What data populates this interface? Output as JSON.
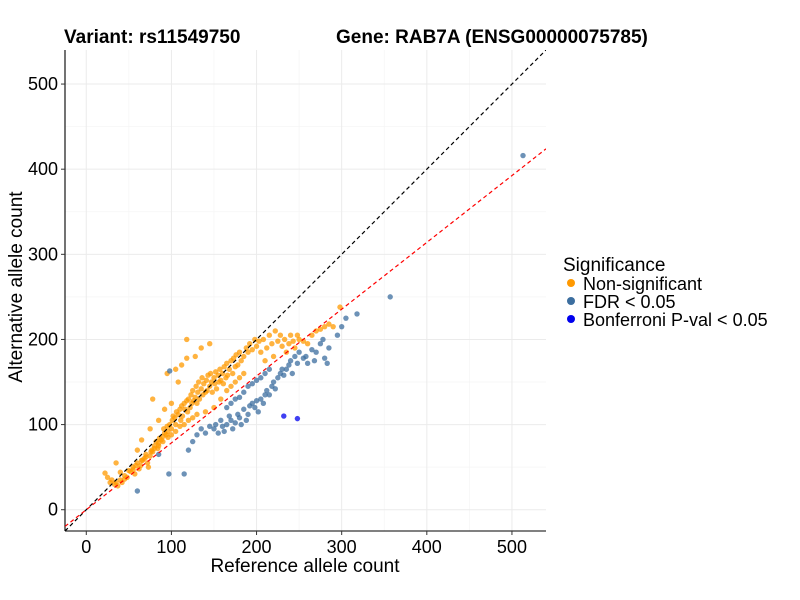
{
  "title_left": "Variant: rs11549750",
  "title_right": "Gene: RAB7A (ENSG00000075785)",
  "chart_data": {
    "type": "scatter",
    "xlabel": "Reference allele count",
    "ylabel": "Alternative allele count",
    "xlim": [
      -25,
      540
    ],
    "ylim": [
      -25,
      540
    ],
    "xticks": [
      0,
      100,
      200,
      300,
      400,
      500
    ],
    "yticks": [
      0,
      100,
      200,
      300,
      400,
      500
    ],
    "x_tick_labels": [
      "0",
      "100",
      "200",
      "300",
      "400",
      "500"
    ],
    "y_tick_labels": [
      "0",
      "100",
      "200",
      "300",
      "400",
      "500"
    ],
    "grid": true,
    "legend": {
      "title": "Significance",
      "position": "right",
      "entries": [
        {
          "label": "Non-significant",
          "color": "#FF9900"
        },
        {
          "label": "FDR < 0.05",
          "color": "#3C6E9F"
        },
        {
          "label": "Bonferroni P-val < 0.05",
          "color": "#0000EE"
        }
      ]
    },
    "reference_lines": [
      {
        "name": "identity",
        "slope": 1.0,
        "intercept": 0,
        "color": "#000000",
        "style": "dashed"
      },
      {
        "name": "fit",
        "slope": 0.785,
        "intercept": 0,
        "color": "#FF0000",
        "style": "dashed"
      }
    ],
    "series": [
      {
        "name": "Non-significant",
        "color": "#FF9900",
        "points": [
          [
            22,
            43
          ],
          [
            25,
            38
          ],
          [
            30,
            35
          ],
          [
            33,
            30
          ],
          [
            35,
            55
          ],
          [
            37,
            28
          ],
          [
            40,
            44
          ],
          [
            42,
            32
          ],
          [
            45,
            40
          ],
          [
            48,
            38
          ],
          [
            50,
            46
          ],
          [
            52,
            45
          ],
          [
            55,
            50
          ],
          [
            57,
            42
          ],
          [
            60,
            55
          ],
          [
            62,
            48
          ],
          [
            64,
            52
          ],
          [
            66,
            58
          ],
          [
            68,
            60
          ],
          [
            70,
            65
          ],
          [
            72,
            55
          ],
          [
            73,
            50
          ],
          [
            75,
            63
          ],
          [
            77,
            70
          ],
          [
            78,
            68
          ],
          [
            80,
            75
          ],
          [
            82,
            80
          ],
          [
            84,
            72
          ],
          [
            85,
            78
          ],
          [
            86,
            84
          ],
          [
            88,
            82
          ],
          [
            90,
            86
          ],
          [
            91,
            95
          ],
          [
            92,
            90
          ],
          [
            94,
            88
          ],
          [
            95,
            98
          ],
          [
            96,
            92
          ],
          [
            98,
            100
          ],
          [
            100,
            95
          ],
          [
            101,
            105
          ],
          [
            102,
            110
          ],
          [
            104,
            108
          ],
          [
            105,
            100
          ],
          [
            106,
            115
          ],
          [
            108,
            112
          ],
          [
            110,
            118
          ],
          [
            111,
            105
          ],
          [
            112,
            122
          ],
          [
            113,
            110
          ],
          [
            115,
            125
          ],
          [
            116,
            118
          ],
          [
            118,
            128
          ],
          [
            119,
            115
          ],
          [
            120,
            130
          ],
          [
            122,
            120
          ],
          [
            123,
            135
          ],
          [
            124,
            125
          ],
          [
            125,
            140
          ],
          [
            126,
            128
          ],
          [
            128,
            132
          ],
          [
            129,
            145
          ],
          [
            130,
            125
          ],
          [
            131,
            138
          ],
          [
            132,
            150
          ],
          [
            133,
            130
          ],
          [
            135,
            142
          ],
          [
            136,
            155
          ],
          [
            137,
            135
          ],
          [
            138,
            148
          ],
          [
            140,
            138
          ],
          [
            141,
            152
          ],
          [
            142,
            140
          ],
          [
            143,
            158
          ],
          [
            145,
            145
          ],
          [
            146,
            160
          ],
          [
            147,
            150
          ],
          [
            148,
            138
          ],
          [
            150,
            155
          ],
          [
            151,
            148
          ],
          [
            152,
            162
          ],
          [
            153,
            142
          ],
          [
            155,
            158
          ],
          [
            156,
            150
          ],
          [
            157,
            165
          ],
          [
            158,
            152
          ],
          [
            160,
            160
          ],
          [
            161,
            148
          ],
          [
            162,
            168
          ],
          [
            164,
            155
          ],
          [
            165,
            172
          ],
          [
            166,
            158
          ],
          [
            168,
            165
          ],
          [
            170,
            175
          ],
          [
            172,
            160
          ],
          [
            173,
            178
          ],
          [
            175,
            168
          ],
          [
            176,
            182
          ],
          [
            178,
            170
          ],
          [
            180,
            185
          ],
          [
            182,
            175
          ],
          [
            185,
            180
          ],
          [
            188,
            190
          ],
          [
            190,
            185
          ],
          [
            192,
            195
          ],
          [
            195,
            188
          ],
          [
            198,
            200
          ],
          [
            200,
            192
          ],
          [
            203,
            198
          ],
          [
            205,
            185
          ],
          [
            208,
            200
          ],
          [
            210,
            175
          ],
          [
            212,
            190
          ],
          [
            215,
            205
          ],
          [
            218,
            195
          ],
          [
            220,
            180
          ],
          [
            222,
            210
          ],
          [
            225,
            198
          ],
          [
            228,
            205
          ],
          [
            230,
            192
          ],
          [
            233,
            200
          ],
          [
            235,
            185
          ],
          [
            238,
            195
          ],
          [
            240,
            205
          ],
          [
            243,
            198
          ],
          [
            245,
            190
          ],
          [
            248,
            205
          ],
          [
            250,
            200
          ],
          [
            255,
            198
          ],
          [
            260,
            195
          ],
          [
            265,
            205
          ],
          [
            270,
            210
          ],
          [
            275,
            212
          ],
          [
            280,
            215
          ],
          [
            285,
            218
          ],
          [
            290,
            215
          ],
          [
            298,
            238
          ],
          [
            118,
            200
          ],
          [
            60,
            70
          ],
          [
            78,
            130
          ],
          [
            95,
            160
          ],
          [
            105,
            165
          ],
          [
            112,
            170
          ],
          [
            118,
            178
          ],
          [
            128,
            180
          ],
          [
            135,
            190
          ],
          [
            145,
            195
          ],
          [
            108,
            150
          ],
          [
            100,
            125
          ],
          [
            92,
            118
          ],
          [
            85,
            105
          ],
          [
            75,
            95
          ],
          [
            65,
            82
          ],
          [
            140,
            115
          ],
          [
            150,
            120
          ],
          [
            158,
            130
          ],
          [
            165,
            140
          ],
          [
            170,
            145
          ],
          [
            175,
            150
          ],
          [
            180,
            155
          ],
          [
            185,
            160
          ],
          [
            130,
            112
          ],
          [
            125,
            108
          ],
          [
            120,
            105
          ],
          [
            115,
            100
          ],
          [
            110,
            98
          ],
          [
            105,
            92
          ],
          [
            100,
            88
          ],
          [
            96,
            85
          ],
          [
            90,
            80
          ],
          [
            85,
            75
          ],
          [
            80,
            72
          ],
          [
            76,
            68
          ],
          [
            70,
            62
          ],
          [
            65,
            58
          ],
          [
            58,
            52
          ],
          [
            55,
            47
          ],
          [
            45,
            36
          ],
          [
            40,
            35
          ],
          [
            35,
            32
          ],
          [
            28,
            32
          ]
        ]
      },
      {
        "name": "FDR < 0.05",
        "color": "#3C6E9F",
        "points": [
          [
            60,
            22
          ],
          [
            85,
            65
          ],
          [
            97,
            42
          ],
          [
            98,
            163
          ],
          [
            115,
            42
          ],
          [
            120,
            70
          ],
          [
            125,
            80
          ],
          [
            130,
            88
          ],
          [
            135,
            95
          ],
          [
            140,
            90
          ],
          [
            145,
            98
          ],
          [
            150,
            95
          ],
          [
            152,
            100
          ],
          [
            155,
            90
          ],
          [
            158,
            105
          ],
          [
            160,
            98
          ],
          [
            162,
            92
          ],
          [
            165,
            100
          ],
          [
            168,
            110
          ],
          [
            170,
            105
          ],
          [
            172,
            95
          ],
          [
            175,
            102
          ],
          [
            178,
            112
          ],
          [
            180,
            108
          ],
          [
            182,
            100
          ],
          [
            185,
            118
          ],
          [
            188,
            105
          ],
          [
            190,
            112
          ],
          [
            192,
            122
          ],
          [
            195,
            125
          ],
          [
            198,
            120
          ],
          [
            200,
            128
          ],
          [
            202,
            115
          ],
          [
            205,
            130
          ],
          [
            208,
            125
          ],
          [
            210,
            135
          ],
          [
            212,
            140
          ],
          [
            215,
            135
          ],
          [
            218,
            145
          ],
          [
            220,
            150
          ],
          [
            222,
            142
          ],
          [
            225,
            155
          ],
          [
            228,
            160
          ],
          [
            230,
            165
          ],
          [
            232,
            158
          ],
          [
            235,
            165
          ],
          [
            238,
            170
          ],
          [
            240,
            175
          ],
          [
            242,
            160
          ],
          [
            245,
            180
          ],
          [
            248,
            172
          ],
          [
            250,
            185
          ],
          [
            255,
            178
          ],
          [
            258,
            180
          ],
          [
            260,
            172
          ],
          [
            265,
            188
          ],
          [
            268,
            175
          ],
          [
            270,
            185
          ],
          [
            275,
            195
          ],
          [
            278,
            200
          ],
          [
            280,
            178
          ],
          [
            283,
            172
          ],
          [
            285,
            190
          ],
          [
            295,
            205
          ],
          [
            300,
            215
          ],
          [
            305,
            225
          ],
          [
            318,
            230
          ],
          [
            357,
            250
          ],
          [
            513,
            416
          ],
          [
            165,
            120
          ],
          [
            170,
            125
          ],
          [
            175,
            130
          ],
          [
            180,
            132
          ],
          [
            185,
            138
          ],
          [
            190,
            145
          ],
          [
            195,
            148
          ],
          [
            200,
            152
          ],
          [
            205,
            155
          ],
          [
            210,
            160
          ],
          [
            215,
            165
          ]
        ]
      },
      {
        "name": "Bonferroni P-val < 0.05",
        "color": "#0000EE",
        "points": [
          [
            232,
            110
          ],
          [
            248,
            107
          ]
        ]
      }
    ]
  }
}
